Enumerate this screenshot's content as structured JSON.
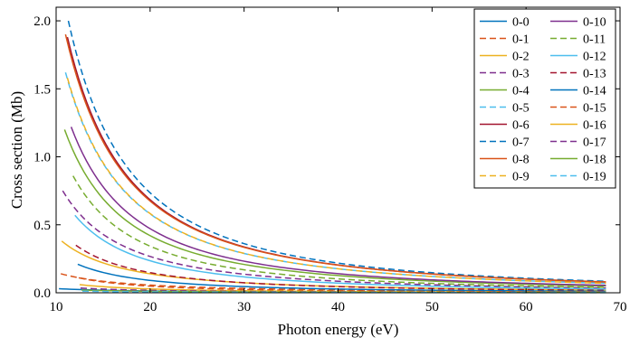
{
  "chart_data": {
    "type": "line",
    "xlabel": "Photon energy (eV)",
    "ylabel": "Cross section (Mb)",
    "xlim": [
      10,
      70
    ],
    "ylim": [
      0,
      2.1
    ],
    "x_ticks": [
      10,
      20,
      30,
      40,
      50,
      60,
      70
    ],
    "y_ticks": [
      0.0,
      0.5,
      1.0,
      1.5,
      2.0
    ],
    "y_tick_labels": [
      "0.0",
      "0.5",
      "1.0",
      "1.5",
      "2.0"
    ],
    "legend_placement": "top-right",
    "series": [
      {
        "name": "0-0",
        "color": "#0072BD",
        "dash": "solid",
        "x_start": 10.3,
        "x_end": 68.5,
        "y_start": 0.03,
        "y_end": 0.003
      },
      {
        "name": "0-1",
        "color": "#D95319",
        "dash": "dashed",
        "x_start": 10.5,
        "x_end": 68.5,
        "y_start": 0.14,
        "y_end": 0.01
      },
      {
        "name": "0-2",
        "color": "#EDB120",
        "dash": "solid",
        "x_start": 10.6,
        "x_end": 68.5,
        "y_start": 0.38,
        "y_end": 0.02
      },
      {
        "name": "0-3",
        "color": "#7E2F8E",
        "dash": "dashed",
        "x_start": 10.7,
        "x_end": 68.5,
        "y_start": 0.75,
        "y_end": 0.035
      },
      {
        "name": "0-4",
        "color": "#77AC30",
        "dash": "solid",
        "x_start": 10.9,
        "x_end": 68.5,
        "y_start": 1.2,
        "y_end": 0.05
      },
      {
        "name": "0-5",
        "color": "#4DBEEE",
        "dash": "dashed",
        "x_start": 11.0,
        "x_end": 68.5,
        "y_start": 1.62,
        "y_end": 0.07
      },
      {
        "name": "0-6",
        "color": "#A2142F",
        "dash": "solid",
        "x_start": 11.2,
        "x_end": 68.5,
        "y_start": 1.88,
        "y_end": 0.08
      },
      {
        "name": "0-7",
        "color": "#0072BD",
        "dash": "dashed",
        "x_start": 11.3,
        "x_end": 68.5,
        "y_start": 2.0,
        "y_end": 0.085
      },
      {
        "name": "0-8",
        "color": "#D95319",
        "dash": "solid",
        "x_start": 11.0,
        "x_end": 68.5,
        "y_start": 1.9,
        "y_end": 0.08
      },
      {
        "name": "0-9",
        "color": "#EDB120",
        "dash": "dashed",
        "x_start": 11.2,
        "x_end": 68.5,
        "y_start": 1.58,
        "y_end": 0.07
      },
      {
        "name": "0-10",
        "color": "#7E2F8E",
        "dash": "solid",
        "x_start": 11.6,
        "x_end": 68.5,
        "y_start": 1.22,
        "y_end": 0.055
      },
      {
        "name": "0-11",
        "color": "#77AC30",
        "dash": "dashed",
        "x_start": 11.8,
        "x_end": 68.5,
        "y_start": 0.86,
        "y_end": 0.04
      },
      {
        "name": "0-12",
        "color": "#4DBEEE",
        "dash": "solid",
        "x_start": 12.0,
        "x_end": 68.5,
        "y_start": 0.57,
        "y_end": 0.028
      },
      {
        "name": "0-13",
        "color": "#A2142F",
        "dash": "dashed",
        "x_start": 12.1,
        "x_end": 68.5,
        "y_start": 0.35,
        "y_end": 0.018
      },
      {
        "name": "0-14",
        "color": "#0072BD",
        "dash": "solid",
        "x_start": 12.3,
        "x_end": 68.5,
        "y_start": 0.21,
        "y_end": 0.011
      },
      {
        "name": "0-15",
        "color": "#D95319",
        "dash": "dashed",
        "x_start": 12.4,
        "x_end": 68.5,
        "y_start": 0.11,
        "y_end": 0.006
      },
      {
        "name": "0-16",
        "color": "#EDB120",
        "dash": "solid",
        "x_start": 12.5,
        "x_end": 68.5,
        "y_start": 0.06,
        "y_end": 0.004
      },
      {
        "name": "0-17",
        "color": "#7E2F8E",
        "dash": "dashed",
        "x_start": 12.6,
        "x_end": 68.5,
        "y_start": 0.035,
        "y_end": 0.003
      },
      {
        "name": "0-18",
        "color": "#77AC30",
        "dash": "solid",
        "x_start": 12.7,
        "x_end": 68.5,
        "y_start": 0.02,
        "y_end": 0.002
      },
      {
        "name": "0-19",
        "color": "#4DBEEE",
        "dash": "dashed",
        "x_start": 12.8,
        "x_end": 68.5,
        "y_start": 0.012,
        "y_end": 0.001
      }
    ]
  }
}
